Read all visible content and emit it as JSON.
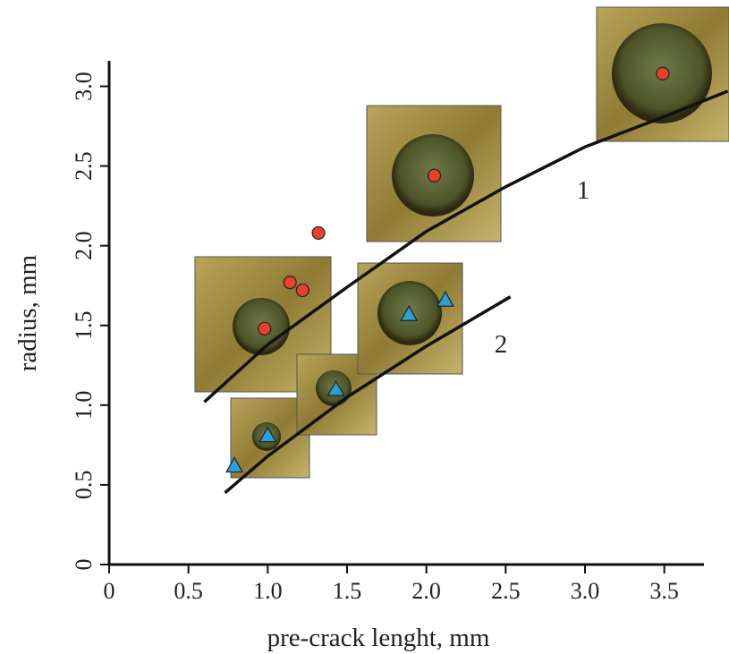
{
  "chart_data": {
    "type": "scatter",
    "x_label": "pre-crack lenght, mm",
    "y_label": "radius, mm",
    "xlim": [
      0,
      3.75
    ],
    "ylim": [
      0,
      3.16
    ],
    "xticks": [
      0,
      0.5,
      {
        "value": 1,
        "label": "1.0"
      },
      1.5,
      {
        "value": 2,
        "label": "2.0"
      },
      2.5,
      {
        "value": 3,
        "label": "3.0"
      },
      3.5
    ],
    "yticks": [
      0,
      0.5,
      {
        "value": 1,
        "label": "1.0"
      },
      1.5,
      {
        "value": 2,
        "label": "2.0"
      },
      2.5,
      {
        "value": 3,
        "label": "3.0"
      }
    ],
    "series": [
      {
        "marker": "circle",
        "color": "#e8412b",
        "x": [
          0.98,
          1.14,
          1.22,
          1.32,
          2.05,
          3.49
        ],
        "values": [
          1.48,
          1.77,
          1.72,
          2.08,
          2.44,
          3.08
        ]
      },
      {
        "marker": "triangle",
        "color": "#2c9fd6",
        "x": [
          0.79,
          1.0,
          1.43,
          1.89,
          2.12
        ],
        "values": [
          0.62,
          0.81,
          1.1,
          1.57,
          1.66
        ]
      },
      {
        "name": "1",
        "marker": "line",
        "color": "#111111",
        "x": [
          0.6,
          1.0,
          1.5,
          2.0,
          2.5,
          3.0,
          3.5,
          3.9
        ],
        "values": [
          1.02,
          1.38,
          1.74,
          2.09,
          2.37,
          2.62,
          2.81,
          2.97
        ]
      },
      {
        "name": "2",
        "marker": "line",
        "color": "#111111",
        "x": [
          0.73,
          1.0,
          1.5,
          2.0,
          2.53
        ],
        "values": [
          0.45,
          0.68,
          1.05,
          1.37,
          1.68
        ]
      }
    ]
  }
}
